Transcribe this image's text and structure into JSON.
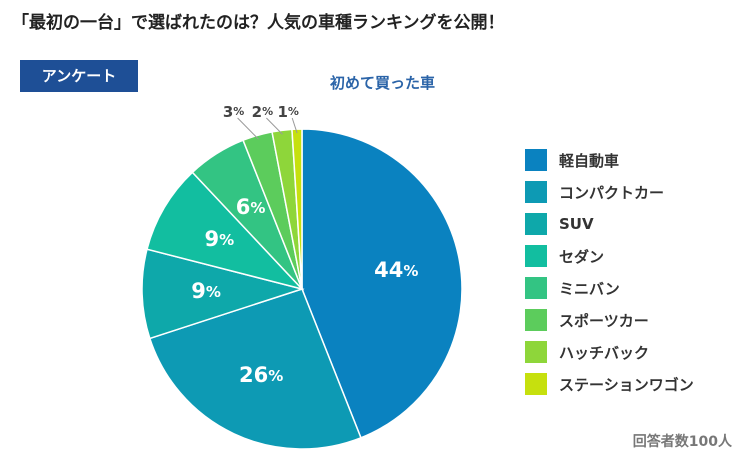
{
  "title": "「最初の一台」で選ばれたのは？人気の車種ランキングを公開！",
  "badge": "アンケート",
  "note": "回答者数100人",
  "chart_data": {
    "type": "pie",
    "title": "初めて買った車",
    "unit": "%",
    "categories": [
      "軽自動車",
      "コンパクトカー",
      "SUV",
      "セダン",
      "ミニバン",
      "スポーツカー",
      "ハッチバック",
      "ステーションワゴン"
    ],
    "values": [
      44,
      26,
      9,
      9,
      6,
      3,
      2,
      1
    ],
    "colors": [
      "#0a82c0",
      "#0d9ab4",
      "#0ea8aa",
      "#12bea0",
      "#33c483",
      "#5ccc5c",
      "#8ed63a",
      "#c6e00e"
    ],
    "legend_position": "right"
  }
}
